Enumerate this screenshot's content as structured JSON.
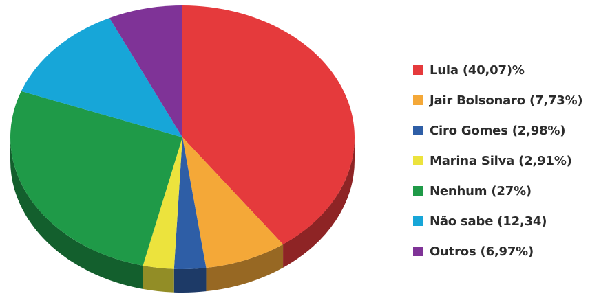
{
  "chart_data": {
    "type": "pie",
    "title": "",
    "legend_position": "right",
    "three_d": true,
    "slices": [
      {
        "label": "Lula (40,07)%",
        "value": 40.07,
        "color": "#e53a3c"
      },
      {
        "label": "Jair Bolsonaro (7,73%)",
        "value": 7.73,
        "color": "#f4a838"
      },
      {
        "label": "Ciro Gomes (2,98%)",
        "value": 2.98,
        "color": "#2e5ea6"
      },
      {
        "label": "Marina Silva (2,91%)",
        "value": 2.91,
        "color": "#ece33d"
      },
      {
        "label": "Nenhum (27%)",
        "value": 27,
        "color": "#1f9a48"
      },
      {
        "label": "Não sabe (12,34)",
        "value": 12.34,
        "color": "#17a6d8"
      },
      {
        "label": "Outros (6,97%)",
        "value": 6.97,
        "color": "#7f3397"
      }
    ]
  }
}
